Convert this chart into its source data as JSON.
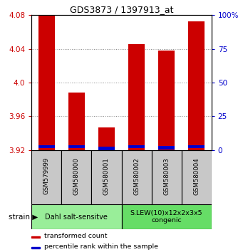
{
  "title": "GDS3873 / 1397913_at",
  "samples": [
    "GSM579999",
    "GSM580000",
    "GSM580001",
    "GSM580002",
    "GSM580003",
    "GSM580004"
  ],
  "red_values": [
    4.083,
    3.988,
    3.947,
    4.046,
    4.038,
    4.073
  ],
  "blue_bottoms": [
    3.922,
    3.922,
    3.92,
    3.922,
    3.921,
    3.922
  ],
  "blue_heights": [
    0.004,
    0.004,
    0.004,
    0.004,
    0.004,
    0.004
  ],
  "ylim": [
    3.92,
    4.08
  ],
  "yticks_left": [
    3.92,
    3.96,
    4.0,
    4.04,
    4.08
  ],
  "yticks_right": [
    0,
    25,
    50,
    75,
    100
  ],
  "bar_width": 0.55,
  "red_color": "#cc0000",
  "blue_color": "#0000cc",
  "group1_label": "Dahl salt-sensitve",
  "group2_label": "S.LEW(10)x12x2x3x5\ncongenic",
  "group1_color": "#99ee99",
  "group2_color": "#66dd66",
  "group1_samples": [
    0,
    1,
    2
  ],
  "group2_samples": [
    3,
    4,
    5
  ],
  "strain_label": "strain",
  "legend_red": "transformed count",
  "legend_blue": "percentile rank within the sample",
  "base": 3.92,
  "bg_color": "#ffffff",
  "sample_box_color": "#c8c8c8"
}
